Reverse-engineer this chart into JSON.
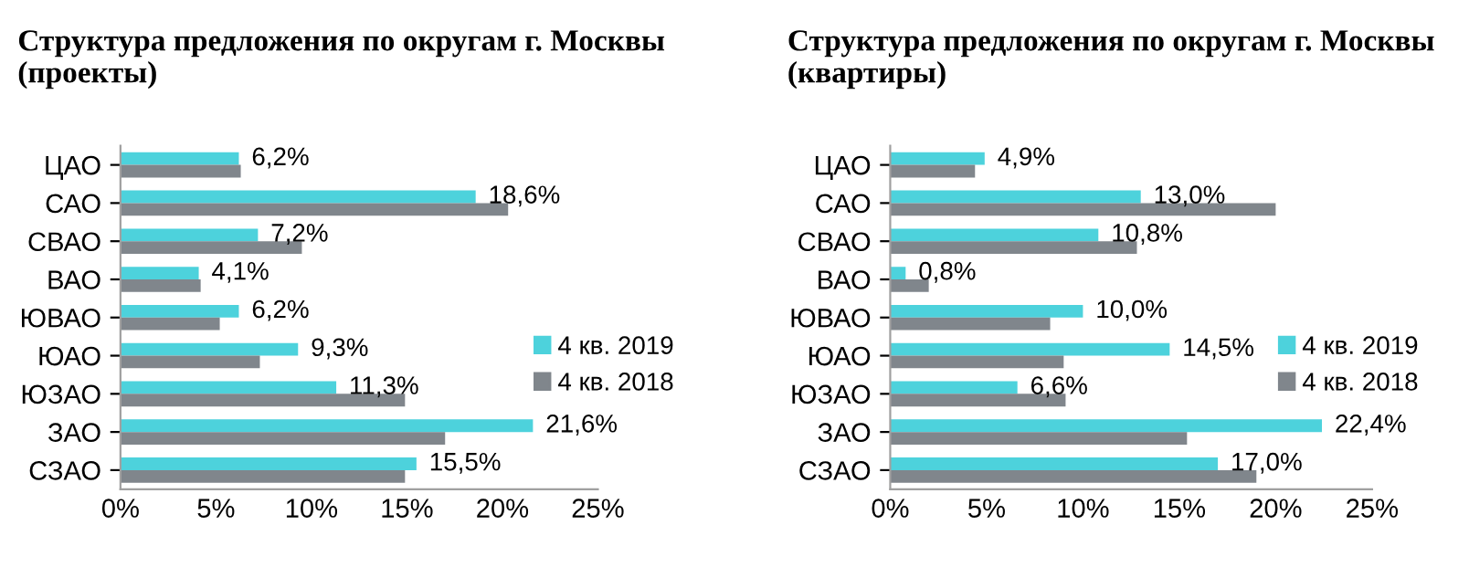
{
  "chart_data": [
    {
      "type": "bar",
      "orientation": "horizontal",
      "title": "Структура предложения по округам г. Москвы\n(проекты)",
      "categories": [
        "ЦАО",
        "САО",
        "СВАО",
        "ВАО",
        "ЮВАО",
        "ЮАО",
        "ЮЗАО",
        "ЗАО",
        "СЗАО"
      ],
      "series": [
        {
          "name": "4 кв. 2019",
          "color": "#4dd2dc",
          "values": [
            6.2,
            18.6,
            7.2,
            4.1,
            6.2,
            9.3,
            11.3,
            21.6,
            15.5
          ],
          "value_labels": [
            "6,2%",
            "18,6%",
            "7,2%",
            "4,1%",
            "6,2%",
            "9,3%",
            "11,3%",
            "21,6%",
            "15,5%"
          ]
        },
        {
          "name": "4 кв. 2018",
          "color": "#80868c",
          "values": [
            6.3,
            20.3,
            9.5,
            4.2,
            5.2,
            7.3,
            14.9,
            17.0,
            14.9
          ]
        }
      ],
      "xlim": [
        0,
        25
      ],
      "xticks": [
        {
          "value": 0,
          "label": "0%"
        },
        {
          "value": 5,
          "label": "5%"
        },
        {
          "value": 10,
          "label": "10%"
        },
        {
          "value": 15,
          "label": "15%"
        },
        {
          "value": 20,
          "label": "20%"
        },
        {
          "value": 25,
          "label": "25%"
        }
      ],
      "grid": false,
      "legend": "right"
    },
    {
      "type": "bar",
      "orientation": "horizontal",
      "title": "Структура предложения по округам г. Москвы\n(квартиры)",
      "categories": [
        "ЦАО",
        "САО",
        "СВАО",
        "ВАО",
        "ЮВАО",
        "ЮАО",
        "ЮЗАО",
        "ЗАО",
        "СЗАО"
      ],
      "series": [
        {
          "name": "4 кв. 2019",
          "color": "#4dd2dc",
          "values": [
            4.9,
            13.0,
            10.8,
            0.8,
            10.0,
            14.5,
            6.6,
            22.4,
            17.0
          ],
          "value_labels": [
            "4,9%",
            "13,0%",
            "10,8%",
            "0,8%",
            "10,0%",
            "14,5%",
            "6,6%",
            "22,4%",
            "17,0%"
          ]
        },
        {
          "name": "4 кв. 2018",
          "color": "#80868c",
          "values": [
            4.4,
            20.0,
            12.8,
            2.0,
            8.3,
            9.0,
            9.1,
            15.4,
            19.0
          ]
        }
      ],
      "xlim": [
        0,
        25
      ],
      "xticks": [
        {
          "value": 0,
          "label": "0%"
        },
        {
          "value": 5,
          "label": "5%"
        },
        {
          "value": 10,
          "label": "10%"
        },
        {
          "value": 15,
          "label": "15%"
        },
        {
          "value": 20,
          "label": "20%"
        },
        {
          "value": 25,
          "label": "25%"
        }
      ],
      "grid": false,
      "legend": "right"
    }
  ]
}
